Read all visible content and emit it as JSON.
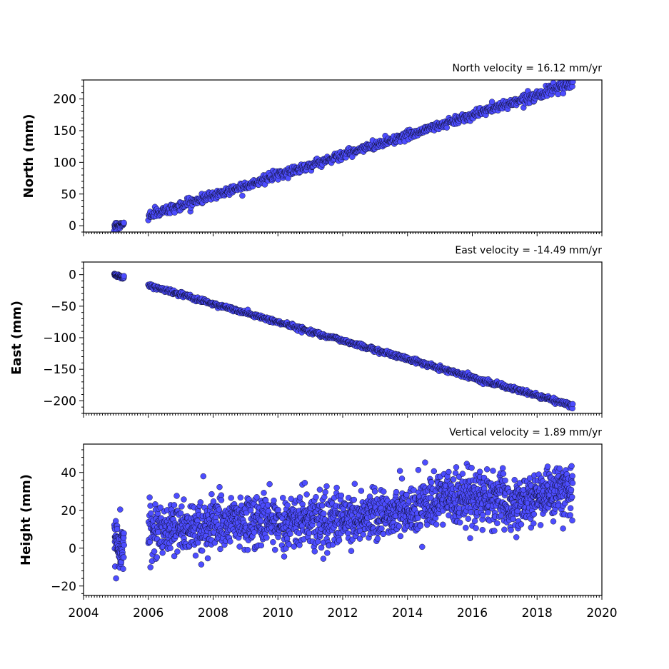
{
  "chart_data": [
    {
      "type": "scatter",
      "title": "North velocity = 16.12 mm/yr",
      "ylabel": "North (mm)",
      "xlim": [
        2004,
        2020
      ],
      "ylim": [
        -10,
        230
      ],
      "yticks": [
        0,
        50,
        100,
        150,
        200
      ],
      "series": [
        {
          "segments": [
            {
              "x": [
                2004.95,
                2005.25
              ],
              "y": [
                0,
                2
              ],
              "n": 40,
              "noise": 3
            },
            {
              "x": [
                2006.0,
                2019.1
              ],
              "y": [
                16,
                224
              ],
              "n": 900,
              "noise": 3.5
            }
          ]
        }
      ]
    },
    {
      "type": "scatter",
      "title": "East velocity = -14.49 mm/yr",
      "ylabel": "East (mm)",
      "xlim": [
        2004,
        2020
      ],
      "ylim": [
        -220,
        20
      ],
      "yticks": [
        0,
        -50,
        -100,
        -150,
        -200
      ],
      "series": [
        {
          "segments": [
            {
              "x": [
                2004.95,
                2005.25
              ],
              "y": [
                0,
                -5
              ],
              "n": 40,
              "noise": 1.5
            },
            {
              "x": [
                2006.0,
                2019.1
              ],
              "y": [
                -17,
                -208
              ],
              "n": 900,
              "noise": 1.8
            }
          ]
        }
      ]
    },
    {
      "type": "scatter",
      "title": "Vertical velocity = 1.89 mm/yr",
      "ylabel": "Height (mm)",
      "xlim": [
        2004,
        2020
      ],
      "ylim": [
        -25,
        55
      ],
      "yticks": [
        -20,
        0,
        20,
        40
      ],
      "xticks": [
        2004,
        2006,
        2008,
        2010,
        2012,
        2014,
        2016,
        2018,
        2020
      ],
      "xticklabels": [
        "2004",
        "2006",
        "2008",
        "2010",
        "2012",
        "2014",
        "2016",
        "2018",
        "2020"
      ],
      "series": [
        {
          "segments": [
            {
              "x": [
                2004.95,
                2005.25
              ],
              "y": [
                2,
                2
              ],
              "n": 70,
              "noise": 7
            },
            {
              "x": [
                2006.0,
                2008.0
              ],
              "y": [
                10,
                12
              ],
              "n": 260,
              "noise": 7
            },
            {
              "x": [
                2008.0,
                2012.0
              ],
              "y": [
                13,
                15
              ],
              "n": 520,
              "noise": 7
            },
            {
              "x": [
                2012.0,
                2015.0
              ],
              "y": [
                15,
                23
              ],
              "n": 420,
              "noise": 6.5
            },
            {
              "x": [
                2015.0,
                2017.0
              ],
              "y": [
                26,
                27
              ],
              "n": 300,
              "noise": 7
            },
            {
              "x": [
                2017.0,
                2019.1
              ],
              "y": [
                22,
                32
              ],
              "n": 320,
              "noise": 6.5
            }
          ]
        }
      ]
    }
  ]
}
